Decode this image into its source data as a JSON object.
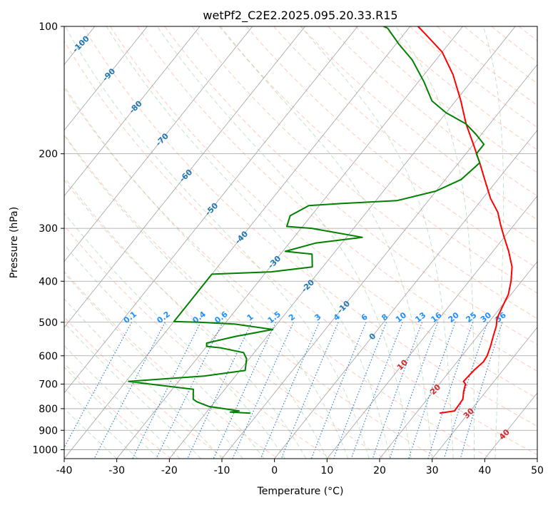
{
  "chart_data": {
    "type": "line",
    "title": "wetPf2_C2E2.2025.095.20.33.R15",
    "xlabel": "Temperature (°C)",
    "ylabel": "Pressure (hPa)",
    "xlim": [
      -40,
      50
    ],
    "ylim": [
      1050,
      100
    ],
    "y_scale": "log",
    "grid": true,
    "x_ticks": [
      "-40",
      "-30",
      "-20",
      "-10",
      "0",
      "10",
      "20",
      "30",
      "40",
      "50"
    ],
    "y_ticks": [
      "100",
      "200",
      "300",
      "400",
      "500",
      "600",
      "700",
      "800",
      "900",
      "1000"
    ],
    "colors": {
      "temperature": "#ff0000",
      "dewpoint": "#008000",
      "isotherm": "#a0a0a0",
      "dry_adiabat": "#ff8c69",
      "moist_adiabat": "#7fbf7f",
      "mixing_ratio": "#1f77d4",
      "isotherm_label": "#1f77b4",
      "warm_label": "#d62728",
      "mixing_label": "#1e90ff"
    },
    "series": [
      {
        "key": "temperature",
        "points": [
          [
            24.5,
            820
          ],
          [
            27.0,
            810
          ],
          [
            26.8,
            760
          ],
          [
            25.8,
            730
          ],
          [
            25.0,
            700
          ],
          [
            24.2,
            690
          ],
          [
            24.5,
            650
          ],
          [
            25.0,
            620
          ],
          [
            24.8,
            600
          ],
          [
            24.0,
            570
          ],
          [
            23.0,
            540
          ],
          [
            22.0,
            510
          ],
          [
            21.0,
            490
          ],
          [
            20.5,
            470
          ],
          [
            20.0,
            450
          ],
          [
            19.5,
            430
          ],
          [
            18.0,
            400
          ],
          [
            16.0,
            370
          ],
          [
            13.0,
            340
          ],
          [
            10.0,
            315
          ],
          [
            7.5,
            295
          ],
          [
            5.0,
            275
          ],
          [
            1.5,
            255
          ],
          [
            -2.5,
            230
          ],
          [
            -6.0,
            210
          ],
          [
            -10.0,
            190
          ],
          [
            -14.5,
            170
          ],
          [
            -19.0,
            150
          ],
          [
            -24.5,
            130
          ],
          [
            -30.0,
            115
          ],
          [
            -35.5,
            105
          ],
          [
            -38.5,
            100
          ]
        ]
      },
      {
        "key": "dewpoint",
        "points": [
          [
            -11.5,
            820
          ],
          [
            -15.5,
            815
          ],
          [
            -14.0,
            810
          ],
          [
            -20.5,
            790
          ],
          [
            -22.0,
            780
          ],
          [
            -23.5,
            770
          ],
          [
            -24.5,
            760
          ],
          [
            -26.0,
            720
          ],
          [
            -35.0,
            700
          ],
          [
            -39.5,
            690
          ],
          [
            -26.0,
            670
          ],
          [
            -19.0,
            650
          ],
          [
            -20.5,
            610
          ],
          [
            -22.0,
            590
          ],
          [
            -27.0,
            575
          ],
          [
            -30.0,
            570
          ],
          [
            -30.5,
            560
          ],
          [
            -26.0,
            540
          ],
          [
            -20.0,
            520
          ],
          [
            -28.0,
            505
          ],
          [
            -35.0,
            500
          ],
          [
            -40.0,
            498
          ],
          [
            -40.0,
            385
          ],
          [
            -29.0,
            380
          ],
          [
            -22.0,
            370
          ],
          [
            -24.0,
            345
          ],
          [
            -29.5,
            340
          ],
          [
            -25.0,
            325
          ],
          [
            -17.0,
            315
          ],
          [
            -28.0,
            300
          ],
          [
            -33.0,
            297
          ],
          [
            -34.0,
            280
          ],
          [
            -32.0,
            265
          ],
          [
            -26.0,
            262
          ],
          [
            -16.0,
            258
          ],
          [
            -10.0,
            245
          ],
          [
            -7.0,
            230
          ],
          [
            -6.0,
            210
          ],
          [
            -8.0,
            200
          ],
          [
            -8.0,
            190
          ],
          [
            -11.0,
            180
          ],
          [
            -14.5,
            170
          ],
          [
            -20.0,
            160
          ],
          [
            -24.5,
            150
          ],
          [
            -29.0,
            135
          ],
          [
            -34.5,
            120
          ],
          [
            -39.5,
            110
          ],
          [
            -44.0,
            101
          ],
          [
            -45.0,
            100
          ]
        ]
      }
    ],
    "isotherm_labels": [
      {
        "text": "-100",
        "t": -100,
        "p": 110
      },
      {
        "text": "-90",
        "t": -90,
        "p": 130
      },
      {
        "text": "-80",
        "t": -80,
        "p": 155
      },
      {
        "text": "-70",
        "t": -70,
        "p": 185
      },
      {
        "text": "-60",
        "t": -60,
        "p": 225
      },
      {
        "text": "-50",
        "t": -50,
        "p": 270
      },
      {
        "text": "-40",
        "t": -40,
        "p": 315
      },
      {
        "text": "-30",
        "t": -30,
        "p": 360
      },
      {
        "text": "-20",
        "t": -20,
        "p": 410
      },
      {
        "text": "-10",
        "t": -10,
        "p": 460
      },
      {
        "text": "0",
        "t": 0,
        "p": 540
      },
      {
        "text": "10",
        "t": 10,
        "p": 630
      },
      {
        "text": "20",
        "t": 20,
        "p": 720
      },
      {
        "text": "30",
        "t": 30,
        "p": 820
      },
      {
        "text": "40",
        "t": 40,
        "p": 920
      }
    ],
    "mixing_ratio_labels": [
      "0.1",
      "0.2",
      "0.4",
      "0.6",
      "1",
      "1.5",
      "2",
      "3",
      "4",
      "6",
      "8",
      "10",
      "13",
      "16",
      "20",
      "25",
      "30",
      "36"
    ]
  }
}
